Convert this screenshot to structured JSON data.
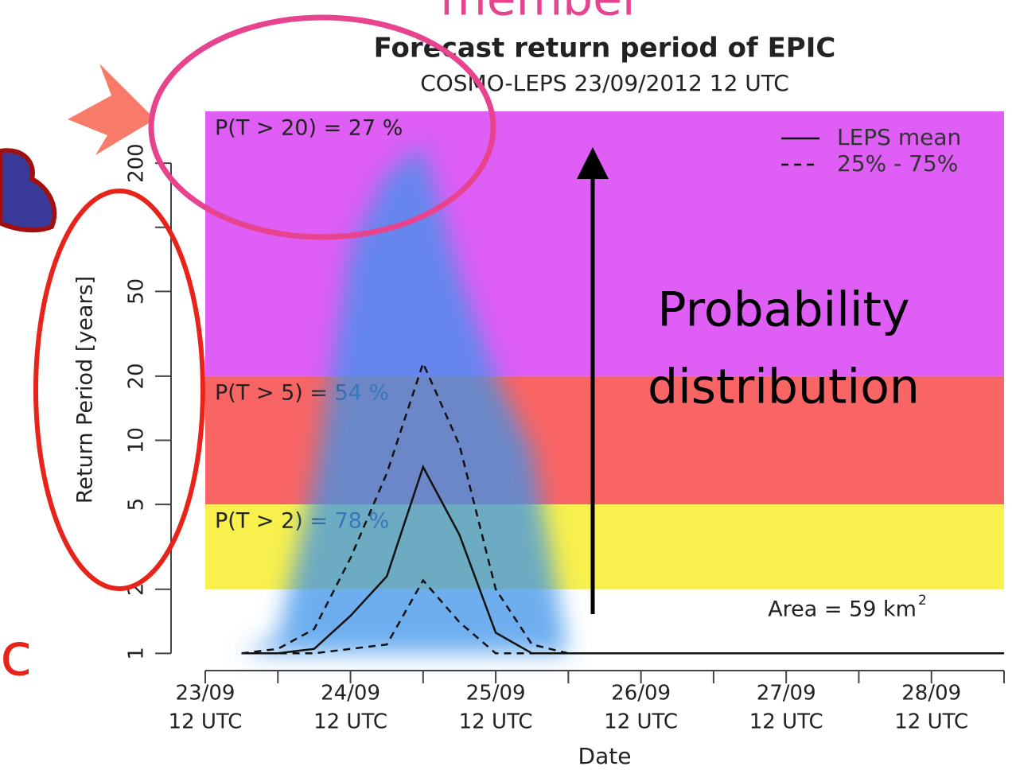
{
  "slide": {
    "cut_heading": "member",
    "side_letter": "c"
  },
  "chart_data": {
    "type": "line",
    "title": "Forecast return period of EPIC",
    "subtitle": "COSMO-LEPS 23/09/2012 12 UTC",
    "y_label": "Return Period [years]",
    "x_label": "Date",
    "log_y": true,
    "ylim": [
      0.83,
      350
    ],
    "yticks": [
      1,
      2,
      5,
      10,
      20,
      50,
      200
    ],
    "yminorticks": [
      100
    ],
    "xlim": [
      23.5,
      29.0
    ],
    "xticks": [
      {
        "value": 23.5,
        "label": "23/09"
      },
      {
        "value": 24.5,
        "label": "24/09"
      },
      {
        "value": 25.5,
        "label": "25/09"
      },
      {
        "value": 26.5,
        "label": "26/09"
      },
      {
        "value": 27.5,
        "label": "27/09"
      },
      {
        "value": 28.5,
        "label": "28/09"
      }
    ],
    "xtick_times": [
      "12 UTC",
      "12 UTC",
      "12 UTC",
      "12 UTC",
      "12 UTC",
      "12 UTC"
    ],
    "xminorticks": [
      24,
      25,
      26,
      27,
      28,
      29
    ],
    "bands": [
      {
        "min": 20,
        "label": "P(T > 20) = 27 %",
        "color": "#de5ef6"
      },
      {
        "min": 5,
        "max": 20,
        "label": "P(T > 5) = 54 %",
        "color": "#f96464"
      },
      {
        "min": 2,
        "max": 5,
        "label": "P(T > 2) = 78 %",
        "color": "#f8f04c"
      }
    ],
    "x": [
      23.75,
      24.0,
      24.25,
      24.5,
      24.75,
      25.0,
      25.25,
      25.5,
      25.75,
      26.0,
      29.0
    ],
    "envelope": {
      "color": "#3f93ea",
      "values": [
        1,
        1.2,
        6.5,
        80,
        180,
        240,
        60,
        20,
        9,
        1,
        1
      ]
    },
    "series": [
      {
        "name": "LEPS mean",
        "color": "#111111",
        "dash": false,
        "values": [
          1,
          1,
          1.05,
          1.5,
          2.3,
          7.5,
          3.6,
          1.25,
          1,
          1,
          1
        ]
      },
      {
        "name": "25% - 75%",
        "color": "#111111",
        "dash": true,
        "values": [
          1,
          1.05,
          1.3,
          2.8,
          7,
          23,
          9.5,
          2,
          1.1,
          1,
          1
        ]
      },
      {
        "color": "#111111",
        "dash": true,
        "values": [
          1,
          1,
          1,
          1.05,
          1.1,
          2.2,
          1.4,
          1,
          1,
          1,
          1
        ]
      }
    ],
    "legend": "top-right",
    "area_label": "Area = 59 km",
    "area_unit_power": "2",
    "annotation": [
      "Probability",
      "distribution"
    ]
  }
}
